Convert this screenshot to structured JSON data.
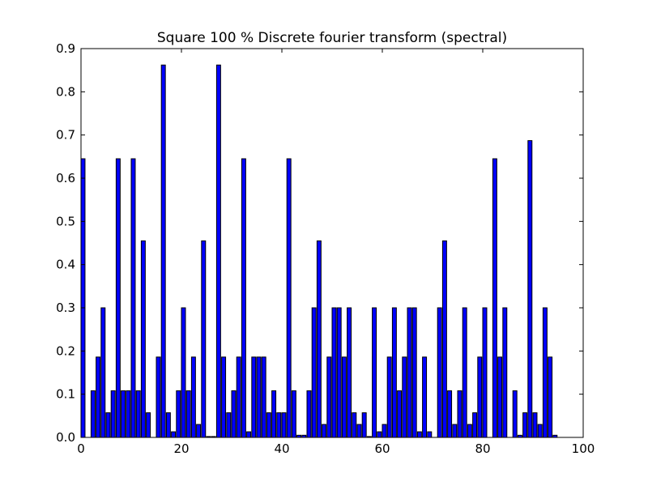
{
  "chart_data": {
    "type": "bar",
    "title": "Square 100 % Discrete fourier transform (spectral)",
    "xlabel": "",
    "ylabel": "",
    "xlim": [
      0,
      100
    ],
    "ylim": [
      0,
      0.9
    ],
    "xticks": [
      "0",
      "20",
      "40",
      "60",
      "80",
      "100"
    ],
    "yticks": [
      "0.0",
      "0.1",
      "0.2",
      "0.3",
      "0.4",
      "0.5",
      "0.6",
      "0.7",
      "0.8",
      "0.9"
    ],
    "bar_width": 0.8,
    "grid": false,
    "legend": "none",
    "bar_color": "#0000ff",
    "x": [
      0,
      1,
      2,
      3,
      4,
      5,
      6,
      7,
      8,
      9,
      10,
      11,
      12,
      13,
      14,
      15,
      16,
      17,
      18,
      19,
      20,
      21,
      22,
      23,
      24,
      25,
      26,
      27,
      28,
      29,
      30,
      31,
      32,
      33,
      34,
      35,
      36,
      37,
      38,
      39,
      40,
      41,
      42,
      43,
      44,
      45,
      46,
      47,
      48,
      49,
      50,
      51,
      52,
      53,
      54,
      55,
      56,
      57,
      58,
      59,
      60,
      61,
      62,
      63,
      64,
      65,
      66,
      67,
      68,
      69,
      70,
      71,
      72,
      73,
      74,
      75,
      76,
      77,
      78,
      79,
      80,
      81,
      82,
      83,
      84,
      85,
      86,
      87,
      88,
      89,
      90,
      91,
      92,
      93,
      94,
      95
    ],
    "values": [
      0.645,
      0.0,
      0.108,
      0.186,
      0.3,
      0.057,
      0.108,
      0.645,
      0.108,
      0.108,
      0.645,
      0.108,
      0.455,
      0.057,
      0.0,
      0.186,
      0.862,
      0.057,
      0.013,
      0.108,
      0.3,
      0.108,
      0.186,
      0.03,
      0.455,
      0.002,
      0.002,
      0.862,
      0.186,
      0.057,
      0.108,
      0.186,
      0.645,
      0.013,
      0.186,
      0.186,
      0.186,
      0.057,
      0.108,
      0.057,
      0.057,
      0.645,
      0.108,
      0.005,
      0.005,
      0.108,
      0.3,
      0.455,
      0.03,
      0.186,
      0.3,
      0.3,
      0.186,
      0.3,
      0.057,
      0.03,
      0.057,
      0.002,
      0.3,
      0.013,
      0.03,
      0.186,
      0.3,
      0.108,
      0.186,
      0.3,
      0.3,
      0.013,
      0.186,
      0.013,
      0.0,
      0.3,
      0.455,
      0.108,
      0.03,
      0.108,
      0.3,
      0.03,
      0.057,
      0.186,
      0.3,
      0.0,
      0.645,
      0.186,
      0.3,
      0.0,
      0.108,
      0.005,
      0.057,
      0.687,
      0.057,
      0.03,
      0.3,
      0.186,
      0.005,
      0.0
    ]
  }
}
